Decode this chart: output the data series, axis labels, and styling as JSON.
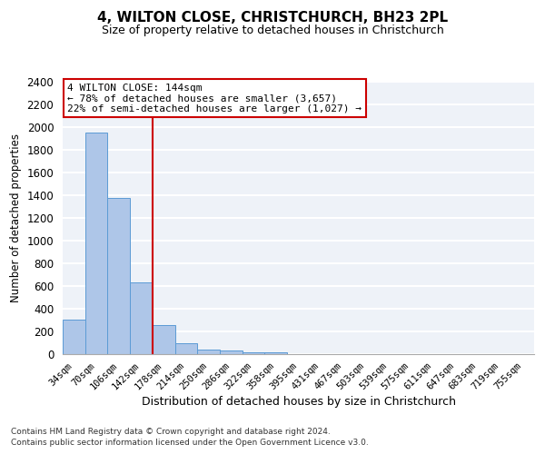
{
  "title": "4, WILTON CLOSE, CHRISTCHURCH, BH23 2PL",
  "subtitle": "Size of property relative to detached houses in Christchurch",
  "xlabel": "Distribution of detached houses by size in Christchurch",
  "ylabel": "Number of detached properties",
  "categories": [
    "34sqm",
    "70sqm",
    "106sqm",
    "142sqm",
    "178sqm",
    "214sqm",
    "250sqm",
    "286sqm",
    "322sqm",
    "358sqm",
    "395sqm",
    "431sqm",
    "467sqm",
    "503sqm",
    "539sqm",
    "575sqm",
    "611sqm",
    "647sqm",
    "683sqm",
    "719sqm",
    "755sqm"
  ],
  "bar_values": [
    305,
    1950,
    1380,
    630,
    260,
    95,
    42,
    30,
    20,
    15,
    0,
    0,
    0,
    0,
    0,
    0,
    0,
    0,
    0,
    0,
    0
  ],
  "bar_color": "#aec6e8",
  "bar_edge_color": "#5b9bd5",
  "ylim": [
    0,
    2400
  ],
  "yticks": [
    0,
    200,
    400,
    600,
    800,
    1000,
    1200,
    1400,
    1600,
    1800,
    2000,
    2200,
    2400
  ],
  "property_bin_index": 3,
  "vline_color": "#cc0000",
  "annotation_line1": "4 WILTON CLOSE: 144sqm",
  "annotation_line2": "← 78% of detached houses are smaller (3,657)",
  "annotation_line3": "22% of semi-detached houses are larger (1,027) →",
  "annotation_box_color": "white",
  "annotation_box_edge": "#cc0000",
  "footer_line1": "Contains HM Land Registry data © Crown copyright and database right 2024.",
  "footer_line2": "Contains public sector information licensed under the Open Government Licence v3.0.",
  "bg_color": "#eef2f8",
  "grid_color": "white",
  "fig_bg": "white"
}
